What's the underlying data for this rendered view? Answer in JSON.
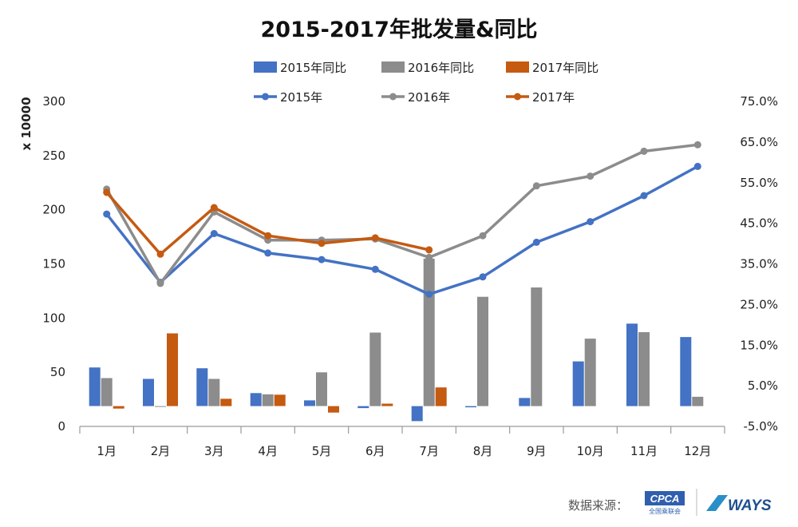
{
  "chart_data": {
    "type": "bar+line",
    "title": "2015-2017年批发量&同比",
    "categories": [
      "1月",
      "2月",
      "3月",
      "4月",
      "5月",
      "6月",
      "7月",
      "8月",
      "9月",
      "10月",
      "11月",
      "12月"
    ],
    "y_left": {
      "label": "x 10000",
      "range": [
        0,
        300
      ],
      "ticks": [
        "0",
        "50",
        "100",
        "150",
        "200",
        "250",
        "300"
      ]
    },
    "y_right": {
      "range": [
        -5,
        75
      ],
      "ticks": [
        "-5.0%",
        "5.0%",
        "15.0%",
        "25.0%",
        "35.0%",
        "45.0%",
        "55.0%",
        "65.0%",
        "75.0%"
      ]
    },
    "legend_placement": "top",
    "bar_series": [
      {
        "name": "2015年同比",
        "color": "#4472C4",
        "axis": "right",
        "values": [
          9.5,
          6.7,
          9.3,
          3.2,
          1.4,
          -0.5,
          -3.7,
          -0.3,
          2.0,
          11.0,
          20.3,
          17.0
        ]
      },
      {
        "name": "2016年同比",
        "color": "#8C8C8C",
        "axis": "right",
        "values": [
          6.9,
          -0.2,
          6.7,
          2.9,
          8.3,
          18.1,
          36.3,
          26.9,
          29.2,
          16.6,
          18.2,
          2.3
        ]
      },
      {
        "name": "2017年同比",
        "color": "#C55A11",
        "axis": "right",
        "values": [
          -0.6,
          17.9,
          1.8,
          2.8,
          -1.6,
          0.6,
          4.6,
          null,
          null,
          null,
          null,
          null
        ]
      }
    ],
    "line_series": [
      {
        "name": "2015年",
        "color": "#4472C4",
        "axis": "left",
        "values": [
          196,
          133,
          178,
          160,
          154,
          145,
          122,
          138,
          170,
          189,
          213,
          240
        ]
      },
      {
        "name": "2016年",
        "color": "#8C8C8C",
        "axis": "left",
        "values": [
          219,
          132,
          198,
          172,
          172,
          173,
          156,
          176,
          222,
          231,
          254,
          260
        ]
      },
      {
        "name": "2017年",
        "color": "#C55A11",
        "axis": "left",
        "values": [
          216,
          159,
          202,
          176,
          169,
          174,
          163,
          null,
          null,
          null,
          null,
          null
        ]
      }
    ],
    "grid": false
  },
  "footer": {
    "source_label": "数据来源：",
    "logo1_text": "CPCA",
    "logo1_sub": "全国乘联会",
    "logo2_text": "WAYS"
  }
}
